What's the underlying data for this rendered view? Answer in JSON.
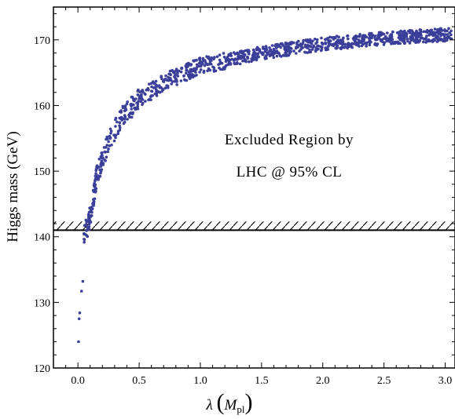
{
  "chart_data": {
    "type": "scatter",
    "ylabel": "Higgs mass (GeV)",
    "xlabel_symbol": "λ",
    "xlabel_arg_main": "M",
    "xlabel_arg_sub": "pl",
    "xlim": [
      -0.2,
      3.08
    ],
    "ylim": [
      120,
      175
    ],
    "x_ticks": [
      "0.0",
      "0.5",
      "1.0",
      "1.5",
      "2.0",
      "2.5",
      "3.0"
    ],
    "y_ticks": [
      "120",
      "130",
      "140",
      "150",
      "160",
      "170"
    ],
    "annotations": [
      "Excluded Region by",
      "LHC @ 95% CL"
    ],
    "exclusion_line_y": 141,
    "point_color": "#3b3f9a",
    "series": [
      {
        "points_sample": [
          {
            "x": 0.005,
            "y": 124.0
          },
          {
            "x": 0.01,
            "y": 127.5
          },
          {
            "x": 0.015,
            "y": 128.4
          },
          {
            "x": 0.03,
            "y": 131.7
          },
          {
            "x": 0.04,
            "y": 133.2
          },
          {
            "x": 0.05,
            "y": 140.5
          },
          {
            "x": 0.08,
            "y": 141.5
          },
          {
            "x": 0.12,
            "y": 145.0
          },
          {
            "x": 0.15,
            "y": 149.0
          },
          {
            "x": 0.25,
            "y": 154.5
          },
          {
            "x": 0.35,
            "y": 158.0
          },
          {
            "x": 0.5,
            "y": 161.0
          },
          {
            "x": 0.75,
            "y": 164.0
          },
          {
            "x": 1.0,
            "y": 166.0
          },
          {
            "x": 1.5,
            "y": 168.0
          },
          {
            "x": 2.0,
            "y": 169.4
          },
          {
            "x": 2.5,
            "y": 170.2
          },
          {
            "x": 3.0,
            "y": 170.8
          }
        ]
      }
    ]
  }
}
